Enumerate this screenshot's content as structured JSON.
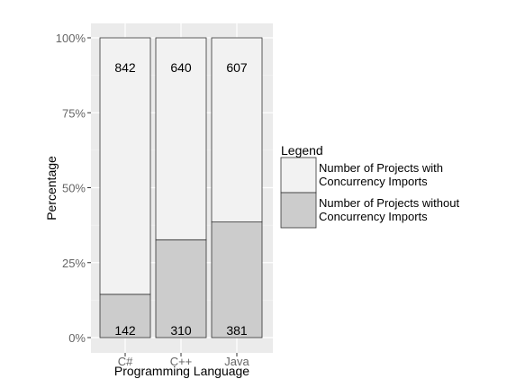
{
  "chart_data": {
    "type": "bar",
    "stacked": true,
    "normalized": true,
    "categories": [
      "C#",
      "C++",
      "Java"
    ],
    "series": [
      {
        "name": "Number of Projects without Concurrency Imports",
        "values": [
          142,
          310,
          381
        ],
        "color": "#cccccc"
      },
      {
        "name": "Number of Projects with Concurrency Imports",
        "values": [
          842,
          640,
          607
        ],
        "color": "#f2f2f2"
      }
    ],
    "title": "",
    "xlabel": "Programming Language",
    "ylabel": "Percentage",
    "ylim": [
      0,
      1
    ],
    "yticks": [
      "0%",
      "25%",
      "50%",
      "75%",
      "100%"
    ],
    "yticks_values": [
      0,
      0.25,
      0.5,
      0.75,
      1
    ],
    "grid": true,
    "panel_background": "#ebebeb",
    "legend": {
      "title": "Legend",
      "position": "right",
      "entries": [
        "Number of Projects with\nConcurrency Imports",
        "Number of Projects without\nConcurrency Imports"
      ]
    }
  }
}
